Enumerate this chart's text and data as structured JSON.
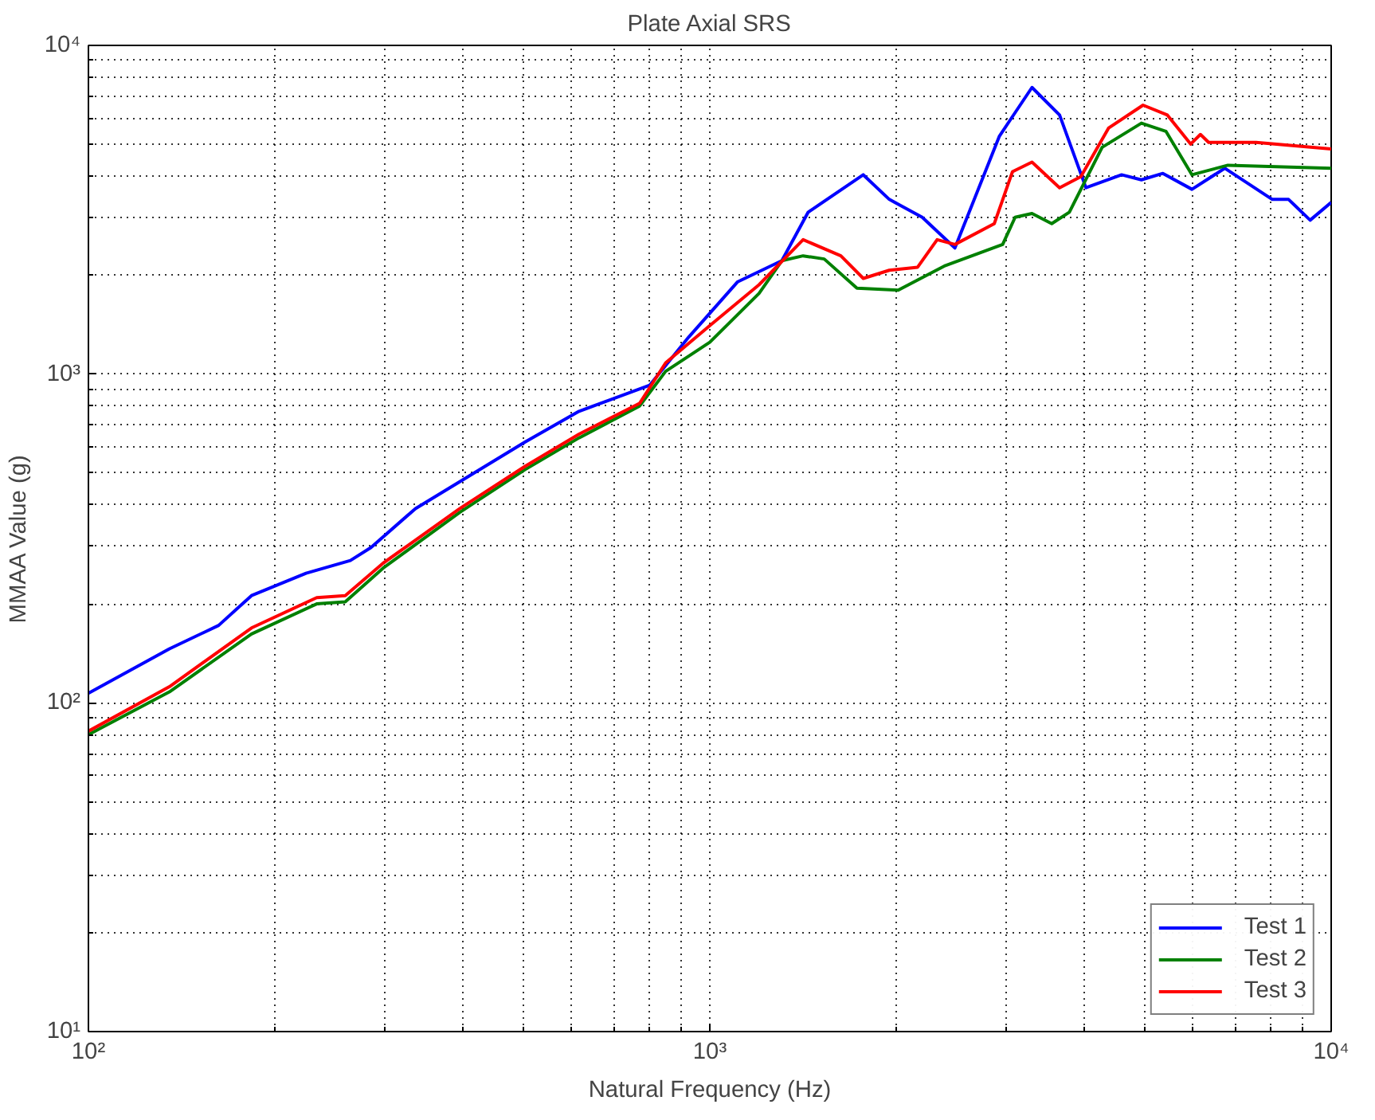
{
  "chart_data": {
    "type": "line",
    "title": "Plate Axial SRS",
    "xlabel": "Natural Frequency (Hz)",
    "ylabel": "MMAA Value (g)",
    "log": "xy",
    "grid": true,
    "legend": "bottom right",
    "line_style": "solid",
    "marker": "none",
    "xlim": [
      100,
      10000
    ],
    "ylim": [
      10,
      10000
    ],
    "xticks": [
      {
        "value": 100,
        "label": "10²"
      },
      {
        "value": 1000,
        "label": "10³"
      },
      {
        "value": 10000,
        "label": "10⁴"
      }
    ],
    "yticks": [
      {
        "value": 10,
        "label": "10¹"
      },
      {
        "value": 100,
        "label": "10²"
      },
      {
        "value": 1000,
        "label": "10³"
      },
      {
        "value": 10000,
        "label": "10⁴"
      }
    ],
    "series": [
      {
        "name": "Test 1",
        "color": "#0000ff",
        "x": [
          100,
          135,
          162,
          183,
          224,
          264,
          285,
          336,
          410,
          504,
          616,
          800,
          925,
          1109,
          1306,
          1440,
          1766,
          1945,
          2197,
          2480,
          2925,
          3300,
          3655,
          4030,
          4600,
          4950,
          5360,
          5970,
          6740,
          8040,
          8540,
          9250,
          10000
        ],
        "values": [
          107,
          146,
          172,
          212,
          248,
          271,
          297,
          390,
          490,
          621,
          771,
          925,
          1297,
          1910,
          2213,
          3110,
          4040,
          3400,
          3000,
          2420,
          5300,
          7450,
          6140,
          3690,
          4040,
          3900,
          4080,
          3650,
          4230,
          3400,
          3400,
          2940,
          3330
        ]
      },
      {
        "name": "Test 2",
        "color": "#008000",
        "x": [
          100,
          135,
          183,
          233,
          259,
          298,
          396,
          504,
          616,
          771,
          849,
          1000,
          1200,
          1306,
          1413,
          1528,
          1725,
          2010,
          2395,
          2960,
          3100,
          3300,
          3550,
          3790,
          4280,
          4950,
          5420,
          5970,
          6820,
          10000
        ],
        "values": [
          80,
          108,
          162,
          200,
          203,
          257,
          380,
          512,
          640,
          800,
          1020,
          1250,
          1760,
          2213,
          2290,
          2240,
          1825,
          1800,
          2140,
          2480,
          3000,
          3080,
          2870,
          3110,
          4900,
          5800,
          5480,
          4040,
          4320,
          4230
        ]
      },
      {
        "name": "Test 3",
        "color": "#ff0000",
        "x": [
          100,
          135,
          183,
          233,
          259,
          298,
          396,
          504,
          616,
          771,
          849,
          1000,
          1200,
          1413,
          1625,
          1766,
          1945,
          2160,
          2322,
          2480,
          2870,
          3070,
          3300,
          3655,
          3955,
          4385,
          4980,
          5450,
          5940,
          6160,
          6350,
          7570,
          10000
        ],
        "values": [
          82,
          112,
          169,
          209,
          212,
          266,
          390,
          524,
          657,
          815,
          1082,
          1405,
          1870,
          2565,
          2290,
          1955,
          2070,
          2115,
          2565,
          2480,
          2870,
          4130,
          4415,
          3690,
          3990,
          5610,
          6580,
          6140,
          5010,
          5360,
          5070,
          5070,
          4840
        ]
      }
    ]
  }
}
